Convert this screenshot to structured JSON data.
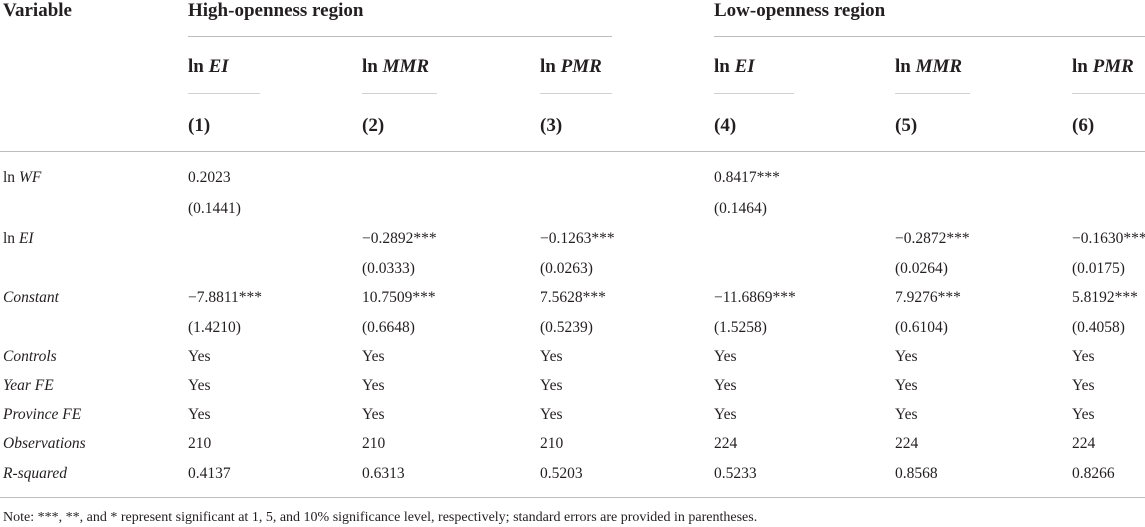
{
  "header": {
    "variable": "Variable",
    "group_high": "High-openness region",
    "group_low": "Low-openness region",
    "dep_vars": [
      {
        "prefix": "ln ",
        "name": "EI"
      },
      {
        "prefix": "ln ",
        "name": "MMR"
      },
      {
        "prefix": "ln ",
        "name": "PMR"
      },
      {
        "prefix": "ln ",
        "name": "EI"
      },
      {
        "prefix": "ln ",
        "name": "MMR"
      },
      {
        "prefix": "ln ",
        "name": "PMR"
      }
    ],
    "col_numbers": [
      "(1)",
      "(2)",
      "(3)",
      "(4)",
      "(5)",
      "(6)"
    ]
  },
  "rows": {
    "lnwf": {
      "label_prefix": "ln ",
      "label_name": "WF",
      "coef": [
        "0.2023",
        "",
        "",
        "0.8417***",
        "",
        ""
      ],
      "se": [
        "(0.1441)",
        "",
        "",
        "(0.1464)",
        "",
        ""
      ]
    },
    "lnei": {
      "label_prefix": "ln ",
      "label_name": "EI",
      "coef": [
        "",
        "−0.2892***",
        "−0.1263***",
        "",
        "−0.2872***",
        "−0.1630***"
      ],
      "se": [
        "",
        "(0.0333)",
        "(0.0263)",
        "",
        "(0.0264)",
        "(0.0175)"
      ]
    },
    "constant": {
      "label": "Constant",
      "coef": [
        "−7.8811***",
        "10.7509***",
        "7.5628***",
        "−11.6869***",
        "7.9276***",
        "5.8192***"
      ],
      "se": [
        "(1.4210)",
        "(0.6648)",
        "(0.5239)",
        "(1.5258)",
        "(0.6104)",
        "(0.4058)"
      ]
    },
    "controls": {
      "label": "Controls",
      "values": [
        "Yes",
        "Yes",
        "Yes",
        "Yes",
        "Yes",
        "Yes"
      ]
    },
    "year_fe": {
      "label": "Year FE",
      "values": [
        "Yes",
        "Yes",
        "Yes",
        "Yes",
        "Yes",
        "Yes"
      ]
    },
    "province_fe": {
      "label": "Province FE",
      "values": [
        "Yes",
        "Yes",
        "Yes",
        "Yes",
        "Yes",
        "Yes"
      ]
    },
    "observations": {
      "label": "Observations",
      "values": [
        "210",
        "210",
        "210",
        "224",
        "224",
        "224"
      ]
    },
    "r_squared": {
      "label": "R-squared",
      "values": [
        "0.4137",
        "0.6313",
        "0.5203",
        "0.5233",
        "0.8568",
        "0.8266"
      ]
    }
  },
  "note": "Note: ***, **, and * represent significant at 1, 5, and 10% significance level, respectively; standard errors are provided in parentheses."
}
